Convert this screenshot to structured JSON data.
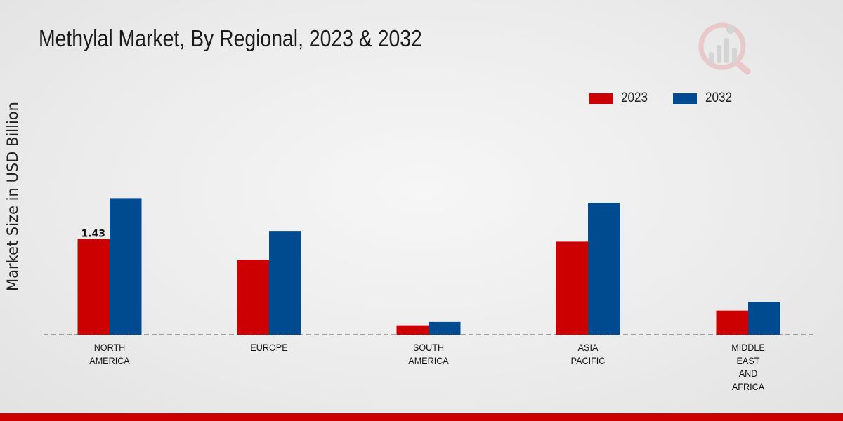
{
  "chart_data": {
    "type": "bar",
    "title": "Methylal Market, By Regional, 2023 & 2032",
    "xlabel": "",
    "ylabel": "Market Size in USD Billion",
    "categories": [
      [
        "NORTH",
        "AMERICA"
      ],
      [
        "EUROPE"
      ],
      [
        "SOUTH",
        "AMERICA"
      ],
      [
        "ASIA",
        "PACIFIC"
      ],
      [
        "MIDDLE",
        "EAST",
        "AND",
        "AFRICA"
      ]
    ],
    "series": [
      {
        "name": "2023",
        "color": "#cc0000",
        "values": [
          1.43,
          1.12,
          0.14,
          1.39,
          0.36
        ]
      },
      {
        "name": "2032",
        "color": "#004a8f",
        "values": [
          2.04,
          1.55,
          0.19,
          1.97,
          0.49
        ]
      }
    ],
    "data_labels": [
      {
        "series": 0,
        "index": 0,
        "text": "1.43"
      }
    ],
    "ylim": [
      0,
      5.0
    ],
    "grid": false,
    "legend_position": "top-right"
  }
}
